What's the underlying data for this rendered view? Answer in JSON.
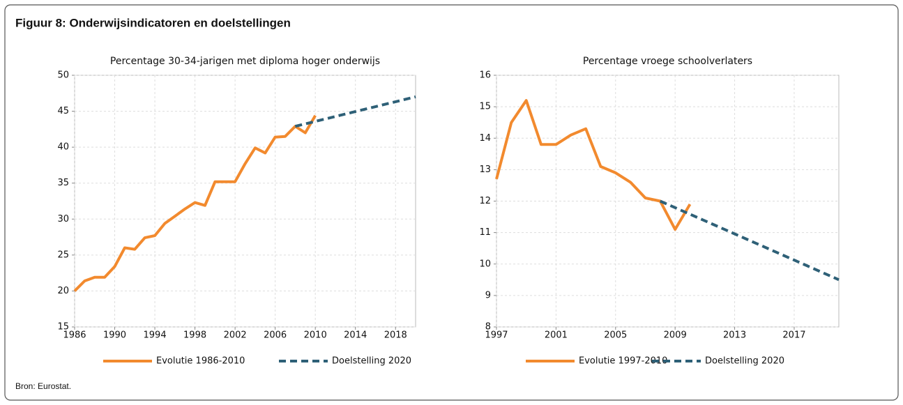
{
  "title": "Figuur 8: Onderwijsindicatoren en doelstellingen",
  "source": "Bron: Eurostat.",
  "chart_data": [
    {
      "type": "line",
      "title": "Percentage 30-34-jarigen met diploma hoger onderwijs",
      "xlim": [
        1986,
        2020
      ],
      "xticks": [
        1986,
        1990,
        1994,
        1998,
        2002,
        2006,
        2010,
        2014,
        2018
      ],
      "ylim": [
        15,
        50
      ],
      "yticks": [
        15,
        20,
        25,
        30,
        35,
        40,
        45,
        50
      ],
      "grid": true,
      "legend": "bottom",
      "series": [
        {
          "name": "Evolutie 1986-2010",
          "color": "#f28a2e",
          "dashed": false,
          "x": [
            1986,
            1987,
            1988,
            1989,
            1990,
            1991,
            1992,
            1993,
            1994,
            1995,
            1996,
            1997,
            1998,
            1999,
            2000,
            2001,
            2002,
            2003,
            2004,
            2005,
            2006,
            2007,
            2008,
            2009,
            2010
          ],
          "values": [
            20.0,
            21.4,
            21.9,
            21.9,
            23.4,
            26.0,
            25.8,
            27.4,
            27.7,
            29.4,
            30.4,
            31.4,
            32.3,
            31.9,
            35.2,
            35.2,
            35.2,
            37.7,
            39.9,
            39.2,
            41.4,
            41.5,
            42.9,
            42.0,
            44.4
          ]
        },
        {
          "name": "Doelstelling 2020",
          "color": "#2e6077",
          "dashed": true,
          "x": [
            2008,
            2020
          ],
          "values": [
            42.9,
            47.0
          ]
        }
      ]
    },
    {
      "type": "line",
      "title": "Percentage vroege schoolverlaters",
      "xlim": [
        1997,
        2020
      ],
      "xticks": [
        1997,
        2001,
        2005,
        2009,
        2013,
        2017
      ],
      "ylim": [
        8,
        16
      ],
      "yticks": [
        8,
        9,
        10,
        11,
        12,
        13,
        14,
        15,
        16
      ],
      "grid": true,
      "legend": "bottom",
      "series": [
        {
          "name": "Evolutie 1997-2010",
          "color": "#f28a2e",
          "dashed": false,
          "x": [
            1997,
            1998,
            1999,
            2000,
            2001,
            2002,
            2003,
            2004,
            2005,
            2006,
            2007,
            2008,
            2009,
            2010
          ],
          "values": [
            12.7,
            14.5,
            15.2,
            13.8,
            13.8,
            14.1,
            14.3,
            13.1,
            12.9,
            12.6,
            12.1,
            12.0,
            11.1,
            11.9
          ]
        },
        {
          "name": "Doelstelling 2020",
          "color": "#2e6077",
          "dashed": true,
          "x": [
            2008,
            2020
          ],
          "values": [
            12.0,
            9.5
          ]
        }
      ]
    }
  ]
}
